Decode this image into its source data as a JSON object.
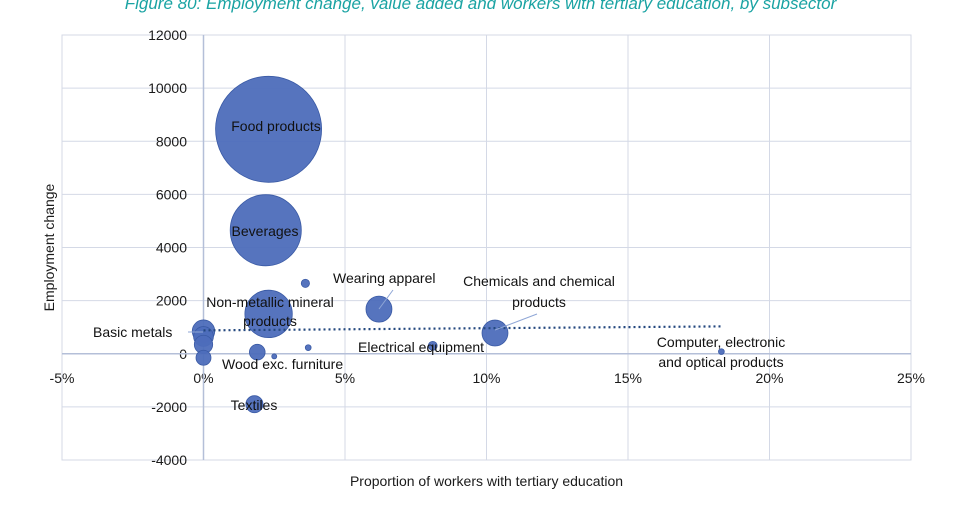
{
  "figure": {
    "title": "Figure 80: Employment change, value added and workers with tertiary education, by subsector"
  },
  "chart_data": {
    "type": "bubble",
    "xlabel": "Proportion of workers with tertiary education",
    "ylabel": "Employment change",
    "xlim": [
      -5,
      25
    ],
    "ylim": [
      -4000,
      12000
    ],
    "x_ticks": [
      "-5%",
      "0%",
      "5%",
      "10%",
      "15%",
      "20%",
      "25%"
    ],
    "y_ticks": [
      "-4000",
      "-2000",
      "0",
      "2000",
      "4000",
      "6000",
      "8000",
      "10000",
      "12000"
    ],
    "grid": "both",
    "bubble_color": "#4d6dba",
    "points": [
      {
        "name": "Food products",
        "x": 2.3,
        "y": 8450,
        "size": 100,
        "label": "Food products"
      },
      {
        "name": "Beverages",
        "x": 2.2,
        "y": 4650,
        "size": 45,
        "label": "Beverages"
      },
      {
        "name": "Non-metallic mineral products",
        "x": 2.3,
        "y": 1500,
        "size": 20,
        "label": "Non-metallic mineral products"
      },
      {
        "name": "Wearing apparel",
        "x": 6.2,
        "y": 1680,
        "size": 6,
        "label": "Wearing apparel"
      },
      {
        "name": "Chemicals and chemical products",
        "x": 10.3,
        "y": 780,
        "size": 6,
        "label": "Chemicals and chemical products"
      },
      {
        "name": "Electrical equipment",
        "x": 8.1,
        "y": 300,
        "size": 0.7,
        "label": "Electrical equipment"
      },
      {
        "name": "Computer, electronic and optical products",
        "x": 18.3,
        "y": 80,
        "size": 0.3,
        "label": "Computer, electronic and optical products"
      },
      {
        "name": "Basic metals",
        "x": 0.0,
        "y": 850,
        "size": 4.5,
        "label": "Basic metals"
      },
      {
        "name": "",
        "x": 0.0,
        "y": 650,
        "size": 3.5,
        "label": ""
      },
      {
        "name": "",
        "x": 0.0,
        "y": 350,
        "size": 3,
        "label": ""
      },
      {
        "name": "",
        "x": 0.0,
        "y": -150,
        "size": 2,
        "label": ""
      },
      {
        "name": "",
        "x": 3.6,
        "y": 2650,
        "size": 0.6,
        "label": ""
      },
      {
        "name": "",
        "x": 3.7,
        "y": 230,
        "size": 0.3,
        "label": ""
      },
      {
        "name": "",
        "x": 2.5,
        "y": -100,
        "size": 0.1,
        "label": ""
      },
      {
        "name": "Wood exc. furniture",
        "x": 1.9,
        "y": 60,
        "size": 2.2,
        "label": "Wood exc. furniture"
      },
      {
        "name": "Textiles",
        "x": 1.8,
        "y": -1900,
        "size": 2.6,
        "label": "Textiles"
      }
    ],
    "trendline": {
      "style": "dotted",
      "color": "#24487f",
      "x": [
        0,
        18.3
      ],
      "y": [
        880,
        1030
      ]
    }
  }
}
